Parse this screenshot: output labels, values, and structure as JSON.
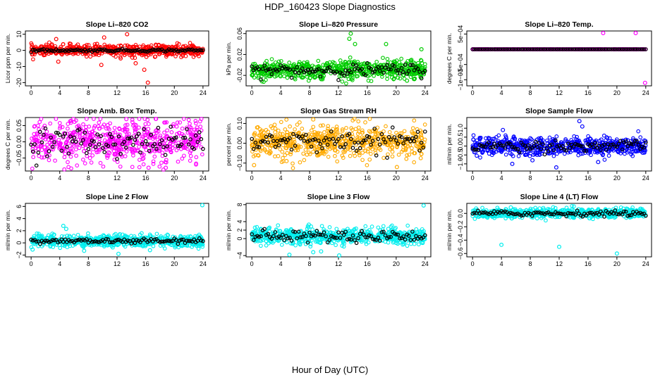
{
  "title": "HDP_160423  Slope Diagnostics",
  "xlabel": "Hour of Day (UTC)",
  "chart_data": [
    {
      "type": "scatter",
      "title": "Slope Li–820 CO2",
      "ylabel": "Licor ppm per min.",
      "color": "#ff0000",
      "xlim": [
        -0.8,
        24.8
      ],
      "xticks": [
        "0",
        "4",
        "8",
        "12",
        "16",
        "20",
        "24"
      ],
      "ylim": [
        -22,
        12
      ],
      "yticks": [
        {
          "v": 10,
          "l": "10"
        },
        {
          "v": 0,
          "l": "0"
        },
        {
          "v": -10,
          "l": "-10"
        },
        {
          "v": -20,
          "l": "-20"
        }
      ],
      "center": 0,
      "spread": 1.6,
      "hourlyAmp": 0.4,
      "outliers": [
        [
          2.5,
          -1
        ],
        [
          3.5,
          7
        ],
        [
          3.8,
          -7
        ],
        [
          5.5,
          4
        ],
        [
          9.2,
          4
        ],
        [
          9.8,
          -9
        ],
        [
          10.2,
          8
        ],
        [
          12.5,
          -5
        ],
        [
          13.4,
          10
        ],
        [
          13.8,
          -3
        ],
        [
          14.2,
          -1
        ],
        [
          14.6,
          -8
        ],
        [
          15.5,
          -3
        ],
        [
          15.8,
          -12
        ],
        [
          16.1,
          -4
        ],
        [
          16.3,
          -20
        ],
        [
          17.3,
          -4
        ],
        [
          17.8,
          3
        ]
      ]
    },
    {
      "type": "scatter",
      "title": "Slope Li–820 Pressure",
      "ylabel": "kPa per min.",
      "color": "#00cc00",
      "xlim": [
        -0.8,
        24.8
      ],
      "xticks": [
        "0",
        "4",
        "8",
        "12",
        "16",
        "20",
        "24"
      ],
      "ylim": [
        -0.04,
        0.065
      ],
      "yticks": [
        {
          "v": 0.06,
          "l": "0.06"
        },
        {
          "v": 0.02,
          "l": "0.02"
        },
        {
          "v": -0.02,
          "l": "-0.02"
        }
      ],
      "center": -0.01,
      "spread": 0.009,
      "hourlyAmp": 0.006,
      "outliers": [
        [
          13.5,
          0.05
        ],
        [
          13.7,
          0.06
        ],
        [
          18.6,
          0.04
        ],
        [
          23.5,
          0.03
        ],
        [
          21.5,
          -0.03
        ],
        [
          14.3,
          0.04
        ]
      ]
    },
    {
      "type": "scatter",
      "title": "Slope Li–820 Temp.",
      "ylabel": "degrees C per min.",
      "color": "#ff00ff",
      "xlim": [
        -0.8,
        24.8
      ],
      "xticks": [
        "0",
        "4",
        "8",
        "12",
        "16",
        "20",
        "24"
      ],
      "ylim": [
        -0.0012,
        0.0006
      ],
      "yticks": [
        {
          "v": 0.0005,
          "l": "5e−04"
        },
        {
          "v": -0.0005,
          "l": "−5e−04"
        },
        {
          "v": -0.001,
          "l": "−1e−03"
        }
      ],
      "center": 0,
      "spread": 0,
      "hourlyAmp": 0,
      "outliers": [
        [
          18.1,
          0.00053
        ],
        [
          22.6,
          0.00053
        ],
        [
          23.9,
          -0.0011
        ]
      ]
    },
    {
      "type": "scatter",
      "title": "Slope Amb. Box Temp.",
      "ylabel": "degrees C per min.",
      "color": "#ff00ff",
      "xlim": [
        -0.8,
        24.8
      ],
      "xticks": [
        "0",
        "4",
        "8",
        "12",
        "16",
        "20",
        "24"
      ],
      "ylim": [
        -0.09,
        0.075
      ],
      "yticks": [
        {
          "v": 0.05,
          "l": "0.05"
        },
        {
          "v": 0,
          "l": "0.00"
        },
        {
          "v": -0.05,
          "l": "−0.05"
        }
      ],
      "center": 0,
      "spread": 0.032,
      "hourlyAmp": 0.022,
      "outliers": [
        [
          13.3,
          0.07
        ],
        [
          16.4,
          -0.08
        ],
        [
          18.8,
          -0.08
        ]
      ]
    },
    {
      "type": "scatter",
      "title": "Slope Gas Stream RH",
      "ylabel": "percent per min.",
      "color": "#ffaa00",
      "xlim": [
        -0.8,
        24.8
      ],
      "xticks": [
        "0",
        "4",
        "8",
        "12",
        "16",
        "20",
        "24"
      ],
      "ylim": [
        -0.14,
        0.13
      ],
      "yticks": [
        {
          "v": 0.1,
          "l": "0.10"
        },
        {
          "v": 0,
          "l": "0.00"
        },
        {
          "v": -0.1,
          "l": "−0.10"
        }
      ],
      "center": 0.01,
      "spread": 0.04,
      "hourlyAmp": 0.028,
      "outliers": [
        [
          0.3,
          -0.11
        ],
        [
          20.1,
          -0.12
        ],
        [
          4.8,
          -0.09
        ],
        [
          8.5,
          0.12
        ]
      ]
    },
    {
      "type": "scatter",
      "title": "Slope Sample Flow",
      "ylabel": "ml/min per min.",
      "color": "#0000ff",
      "xlim": [
        -0.8,
        24.8
      ],
      "xticks": [
        "0",
        "4",
        "8",
        "12",
        "16",
        "20",
        "24"
      ],
      "ylim": [
        -1.4,
        1.6
      ],
      "yticks": [
        {
          "v": 1,
          "l": "1.0"
        },
        {
          "v": 0.5,
          "l": "0.5"
        },
        {
          "v": 0,
          "l": "0.0"
        },
        {
          "v": -0.5,
          "l": "−0.5"
        },
        {
          "v": -1,
          "l": "−1.0"
        }
      ],
      "center": 0,
      "spread": 0.25,
      "hourlyAmp": 0.15,
      "outliers": [
        [
          14.8,
          1.4
        ],
        [
          15.2,
          1.1
        ],
        [
          5.5,
          -1
        ],
        [
          11.6,
          -1.2
        ],
        [
          17.4,
          -0.9
        ],
        [
          8.3,
          -0.8
        ],
        [
          4.2,
          0.9
        ]
      ]
    },
    {
      "type": "scatter",
      "title": "Slope Line 2 Flow",
      "ylabel": "ml/min per min.",
      "color": "#00eeee",
      "xlim": [
        -0.8,
        24.8
      ],
      "xticks": [
        "0",
        "4",
        "8",
        "12",
        "16",
        "20",
        "24"
      ],
      "ylim": [
        -2.3,
        6.5
      ],
      "yticks": [
        {
          "v": 6,
          "l": "6"
        },
        {
          "v": 4,
          "l": "4"
        },
        {
          "v": 2,
          "l": "2"
        },
        {
          "v": 0,
          "l": "0"
        },
        {
          "v": -2,
          "l": "−2"
        }
      ],
      "center": 0.3,
      "spread": 0.45,
      "hourlyAmp": 0.2,
      "outliers": [
        [
          23.9,
          6.2
        ],
        [
          4.5,
          2.8
        ],
        [
          4.9,
          2.3
        ],
        [
          12.2,
          -1.8
        ],
        [
          7.4,
          -1.3
        ],
        [
          0.2,
          -1.1
        ],
        [
          16.6,
          -1.2
        ]
      ]
    },
    {
      "type": "scatter",
      "title": "Slope Line 3 Flow",
      "ylabel": "ml/min per min.",
      "color": "#00eeee",
      "xlim": [
        -0.8,
        24.8
      ],
      "xticks": [
        "0",
        "4",
        "8",
        "12",
        "16",
        "20",
        "24"
      ],
      "ylim": [
        -4.3,
        8.3
      ],
      "yticks": [
        {
          "v": 8,
          "l": "8"
        },
        {
          "v": 4,
          "l": "4"
        },
        {
          "v": 2,
          "l": "2"
        },
        {
          "v": 0,
          "l": "0"
        },
        {
          "v": -4,
          "l": "−4"
        }
      ],
      "center": 0.6,
      "spread": 0.9,
      "hourlyAmp": 0.7,
      "outliers": [
        [
          23.8,
          7.8
        ],
        [
          5.2,
          -3.8
        ],
        [
          12.1,
          -4
        ],
        [
          8.5,
          -3.2
        ],
        [
          9.6,
          -3
        ],
        [
          7.9,
          3.3
        ]
      ]
    },
    {
      "type": "scatter",
      "title": "Slope Line 4 (LT) Flow",
      "ylabel": "ml/min per min.",
      "color": "#00eeee",
      "xlim": [
        -0.8,
        24.8
      ],
      "xticks": [
        "0",
        "4",
        "8",
        "12",
        "16",
        "20",
        "24"
      ],
      "ylim": [
        -0.65,
        0.15
      ],
      "yticks": [
        {
          "v": 0,
          "l": "0.0"
        },
        {
          "v": -0.2,
          "l": "−0.2"
        },
        {
          "v": -0.4,
          "l": "−0.4"
        },
        {
          "v": -0.6,
          "l": "−0.6"
        }
      ],
      "center": 0,
      "spread": 0.035,
      "hourlyAmp": 0.02,
      "outliers": [
        [
          4,
          -0.47
        ],
        [
          12,
          -0.5
        ],
        [
          20,
          -0.6
        ],
        [
          5.3,
          0.09
        ],
        [
          9.8,
          0.08
        ]
      ]
    }
  ]
}
